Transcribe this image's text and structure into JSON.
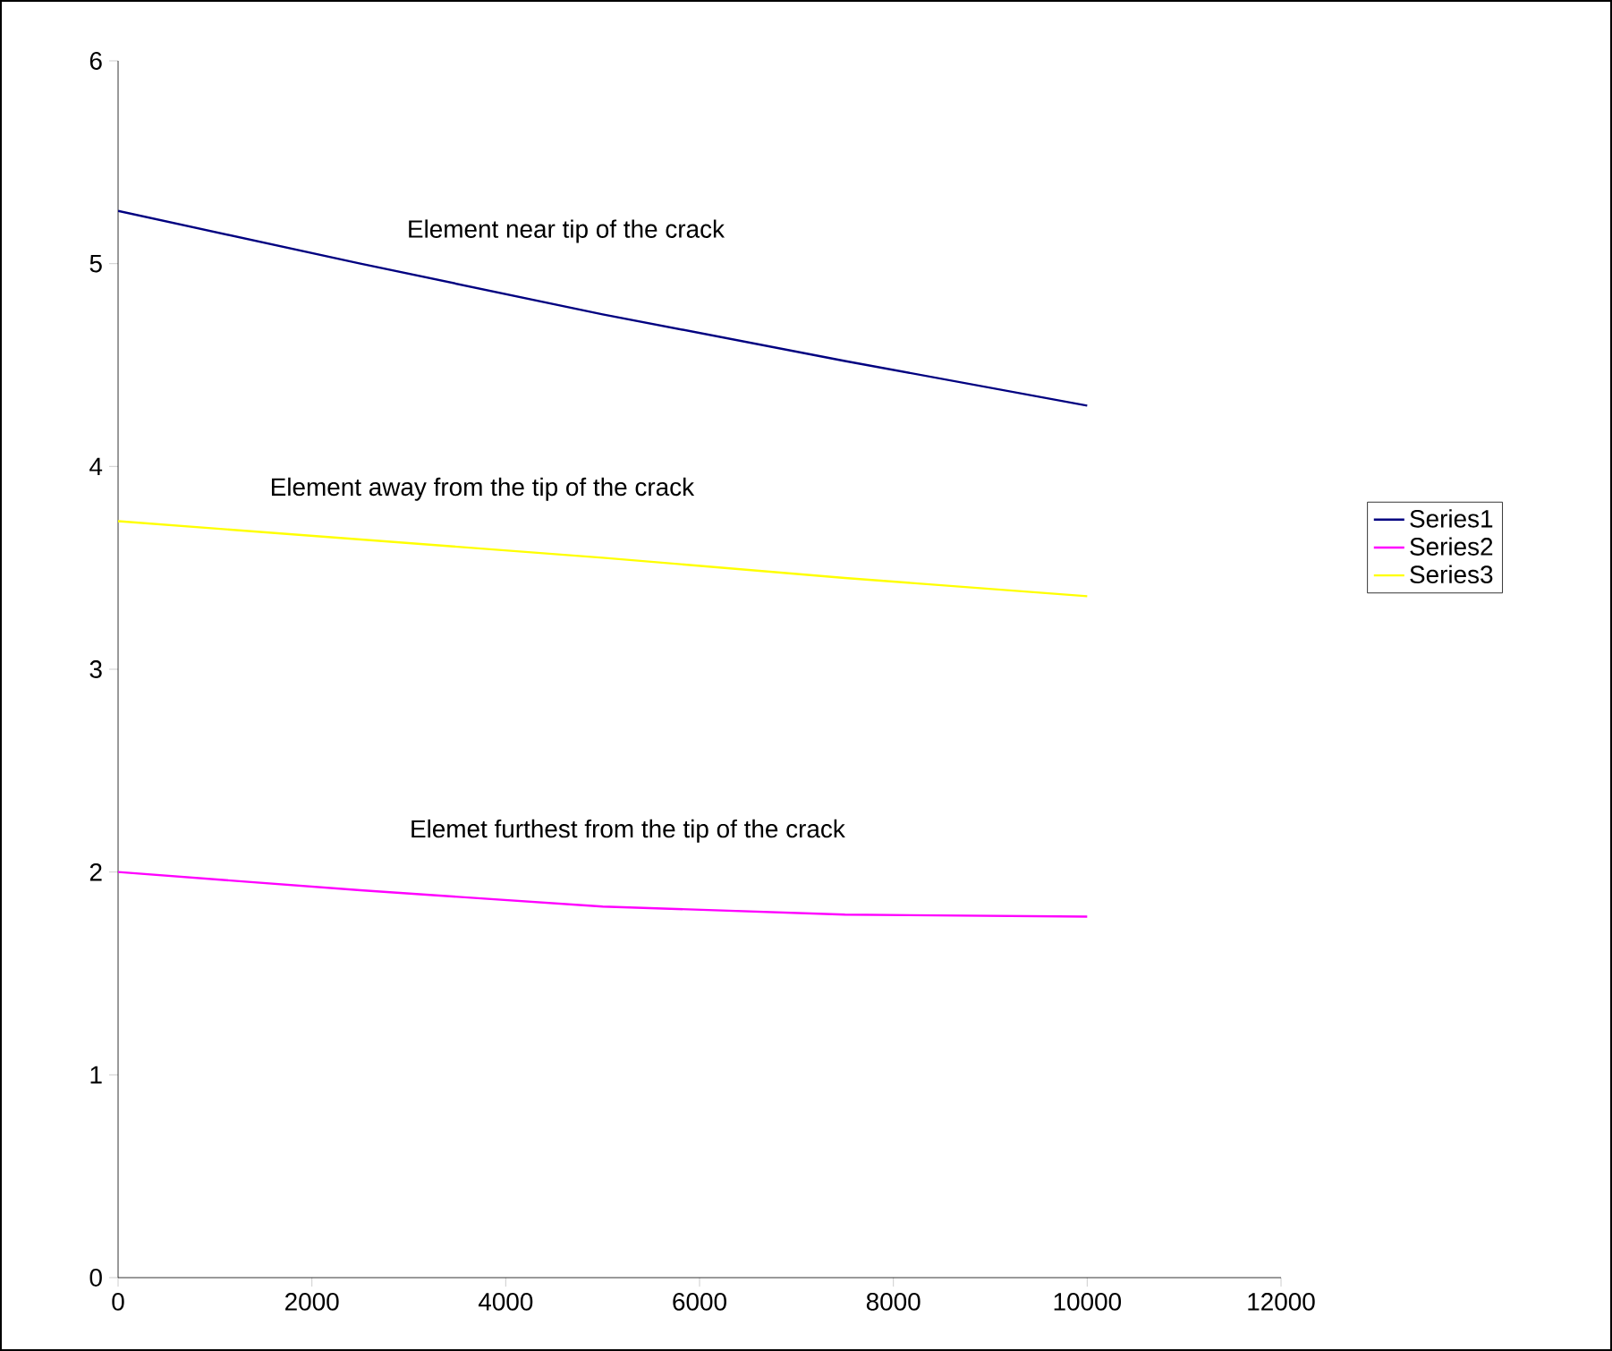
{
  "chart_data": {
    "type": "line",
    "x": [
      0,
      2500,
      5000,
      7500,
      10000
    ],
    "xlim": [
      0,
      12000
    ],
    "ylim": [
      0,
      6
    ],
    "xticks": [
      0,
      2000,
      4000,
      6000,
      8000,
      10000,
      12000
    ],
    "yticks": [
      0,
      1,
      2,
      3,
      4,
      5,
      6
    ],
    "legend": "right",
    "grid": false,
    "series": [
      {
        "name": "Series1",
        "color": "#000080",
        "values": [
          5.26,
          5.0,
          4.75,
          4.52,
          4.3
        ]
      },
      {
        "name": "Series2",
        "color": "#ff00ff",
        "values": [
          2.0,
          1.91,
          1.83,
          1.79,
          1.78
        ]
      },
      {
        "name": "Series3",
        "color": "#ffff00",
        "values": [
          3.73,
          3.64,
          3.55,
          3.45,
          3.36
        ]
      }
    ],
    "annotations": [
      "Element near tip of the crack",
      "Element away from the tip of the crack",
      "Elemet furthest from the tip of the crack"
    ]
  }
}
